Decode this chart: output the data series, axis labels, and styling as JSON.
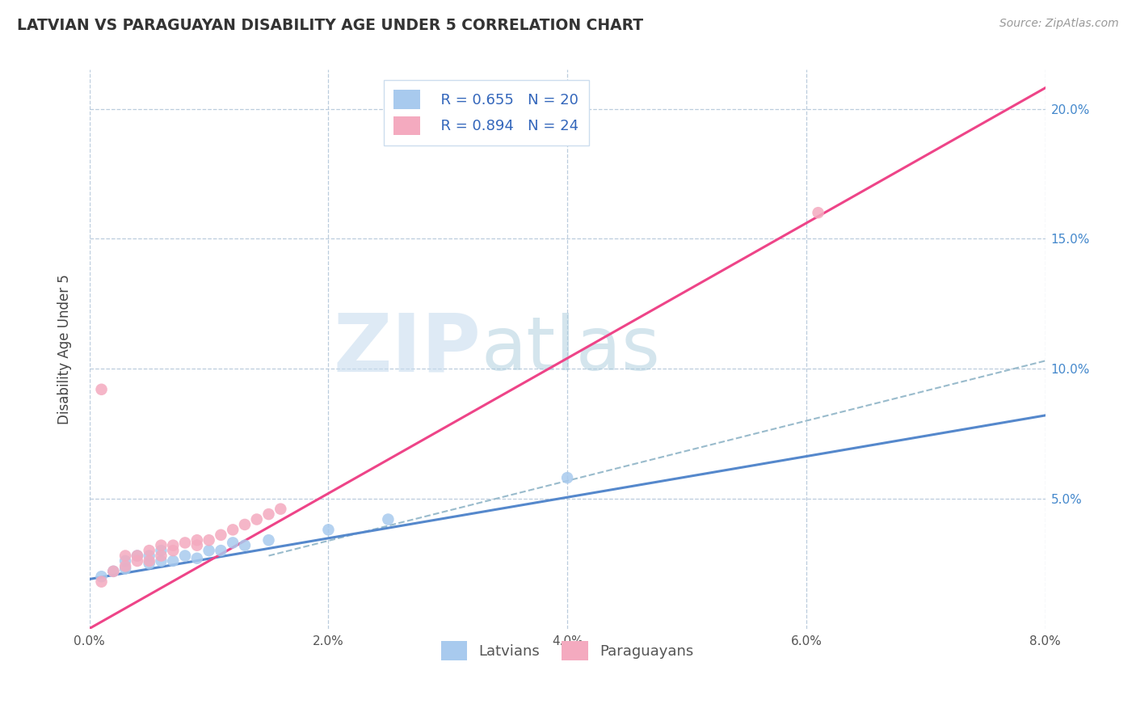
{
  "title": "LATVIAN VS PARAGUAYAN DISABILITY AGE UNDER 5 CORRELATION CHART",
  "source": "Source: ZipAtlas.com",
  "ylabel": "Disability Age Under 5",
  "xlim": [
    0.0,
    0.08
  ],
  "ylim": [
    0.0,
    0.215
  ],
  "x_ticks": [
    0.0,
    0.02,
    0.04,
    0.06,
    0.08
  ],
  "x_tick_labels": [
    "0.0%",
    "2.0%",
    "4.0%",
    "6.0%",
    "8.0%"
  ],
  "y_ticks_right": [
    0.05,
    0.1,
    0.15,
    0.2
  ],
  "y_tick_labels_right": [
    "5.0%",
    "10.0%",
    "15.0%",
    "20.0%"
  ],
  "latvian_color": "#A8CAEE",
  "paraguayan_color": "#F4AABF",
  "trend_latvian_color": "#5588CC",
  "trend_paraguayan_color": "#EE4488",
  "trend_dashed_color": "#99BBCC",
  "latvian_R": 0.655,
  "latvian_N": 20,
  "paraguayan_R": 0.894,
  "paraguayan_N": 24,
  "legend_label_latvian": "Latvians",
  "legend_label_paraguayan": "Paraguayans",
  "latvian_x": [
    0.001,
    0.002,
    0.003,
    0.003,
    0.004,
    0.005,
    0.005,
    0.006,
    0.006,
    0.007,
    0.008,
    0.009,
    0.01,
    0.011,
    0.012,
    0.013,
    0.015,
    0.02,
    0.025,
    0.04
  ],
  "latvian_y": [
    0.02,
    0.022,
    0.023,
    0.026,
    0.028,
    0.025,
    0.028,
    0.026,
    0.03,
    0.026,
    0.028,
    0.027,
    0.03,
    0.03,
    0.033,
    0.032,
    0.034,
    0.038,
    0.042,
    0.058
  ],
  "paraguayan_x": [
    0.001,
    0.001,
    0.002,
    0.003,
    0.003,
    0.004,
    0.004,
    0.005,
    0.005,
    0.006,
    0.006,
    0.007,
    0.007,
    0.008,
    0.009,
    0.009,
    0.01,
    0.011,
    0.012,
    0.013,
    0.014,
    0.015,
    0.016,
    0.061
  ],
  "paraguayan_y": [
    0.018,
    0.092,
    0.022,
    0.024,
    0.028,
    0.026,
    0.028,
    0.026,
    0.03,
    0.028,
    0.032,
    0.03,
    0.032,
    0.033,
    0.032,
    0.034,
    0.034,
    0.036,
    0.038,
    0.04,
    0.042,
    0.044,
    0.046,
    0.16
  ],
  "trend_latvian_x0": 0.0,
  "trend_latvian_y0": 0.019,
  "trend_latvian_x1": 0.08,
  "trend_latvian_y1": 0.082,
  "trend_paraguayan_x0": 0.0,
  "trend_paraguayan_y0": 0.0,
  "trend_paraguayan_x1": 0.08,
  "trend_paraguayan_y1": 0.208,
  "trend_dashed_x0": 0.015,
  "trend_dashed_y0": 0.028,
  "trend_dashed_x1": 0.08,
  "trend_dashed_y1": 0.103
}
